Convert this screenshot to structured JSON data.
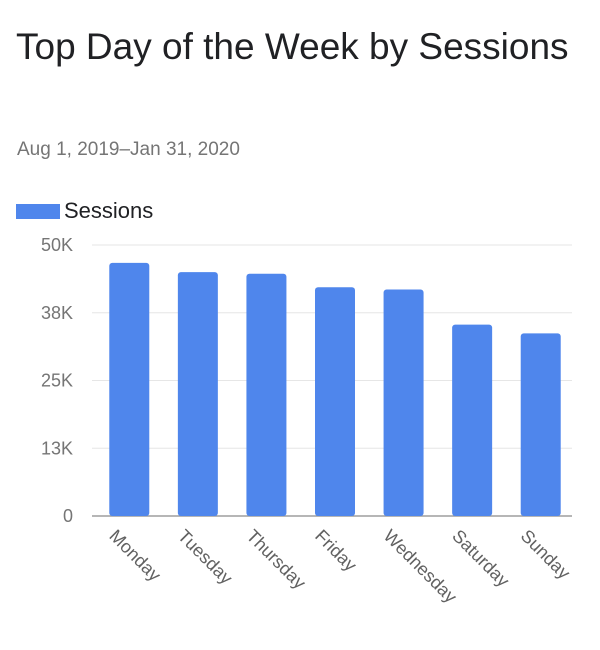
{
  "header": {
    "title": "Top Day of the Week by Sessions",
    "date_range": "Aug 1, 2019–Jan 31, 2020"
  },
  "colors": {
    "bar": "#4f86ec",
    "grid": "#e6e6e6",
    "axis": "#9e9e9e"
  },
  "chart_data": {
    "type": "bar",
    "title": "Top Day of the Week by Sessions",
    "subtitle": "Aug 1, 2019–Jan 31, 2020",
    "legend": {
      "position": "top-left",
      "entries": [
        "Sessions"
      ]
    },
    "categories": [
      "Monday",
      "Tuesday",
      "Thursday",
      "Friday",
      "Wednesday",
      "Saturday",
      "Sunday"
    ],
    "series": [
      {
        "name": "Sessions",
        "values": [
          46700,
          45000,
          44700,
          42200,
          41800,
          35300,
          33700
        ]
      }
    ],
    "y_ticks": [
      {
        "value": 0,
        "label": "0"
      },
      {
        "value": 12500,
        "label": "13K"
      },
      {
        "value": 25000,
        "label": "25K"
      },
      {
        "value": 37500,
        "label": "38K"
      },
      {
        "value": 50000,
        "label": "50K"
      }
    ],
    "ylim": [
      0,
      50000
    ],
    "grid": true,
    "xlabel": "",
    "ylabel": ""
  }
}
